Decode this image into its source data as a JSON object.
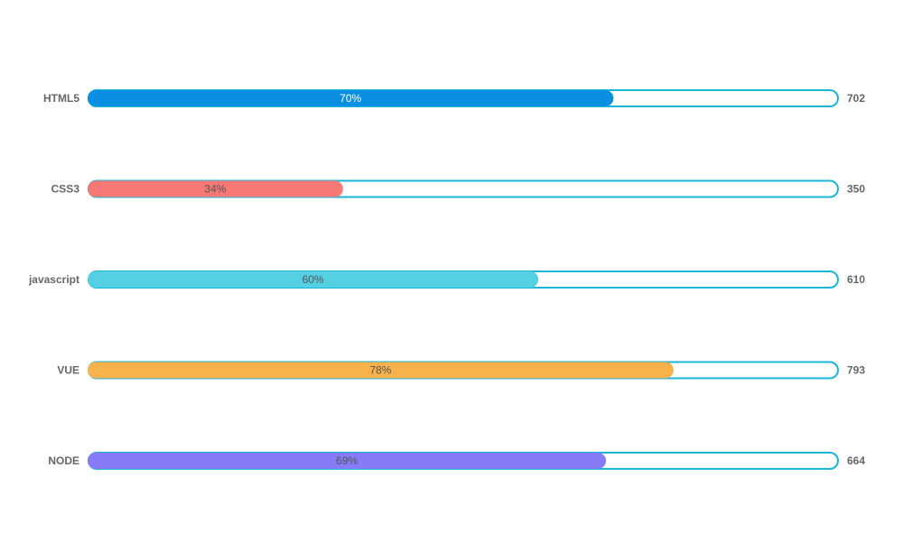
{
  "chart_data": {
    "type": "bar",
    "orientation": "horizontal",
    "categories": [
      "HTML5",
      "CSS3",
      "javascript",
      "VUE",
      "NODE"
    ],
    "values": [
      702,
      350,
      610,
      793,
      664
    ],
    "percent_labels": [
      "70%",
      "34%",
      "60%",
      "78%",
      "69%"
    ],
    "percents": [
      70,
      34,
      60,
      78,
      69
    ],
    "colors": [
      "#0a8fe3",
      "#f77976",
      "#55d0e3",
      "#f7b24b",
      "#877bf7"
    ],
    "percent_label_colors": [
      "#ffffff",
      "#555555",
      "#555555",
      "#555555",
      "#555555"
    ],
    "track_border_color": "#1ab6d8",
    "xlim": [
      0,
      100
    ],
    "grid": false,
    "legend": "none"
  }
}
